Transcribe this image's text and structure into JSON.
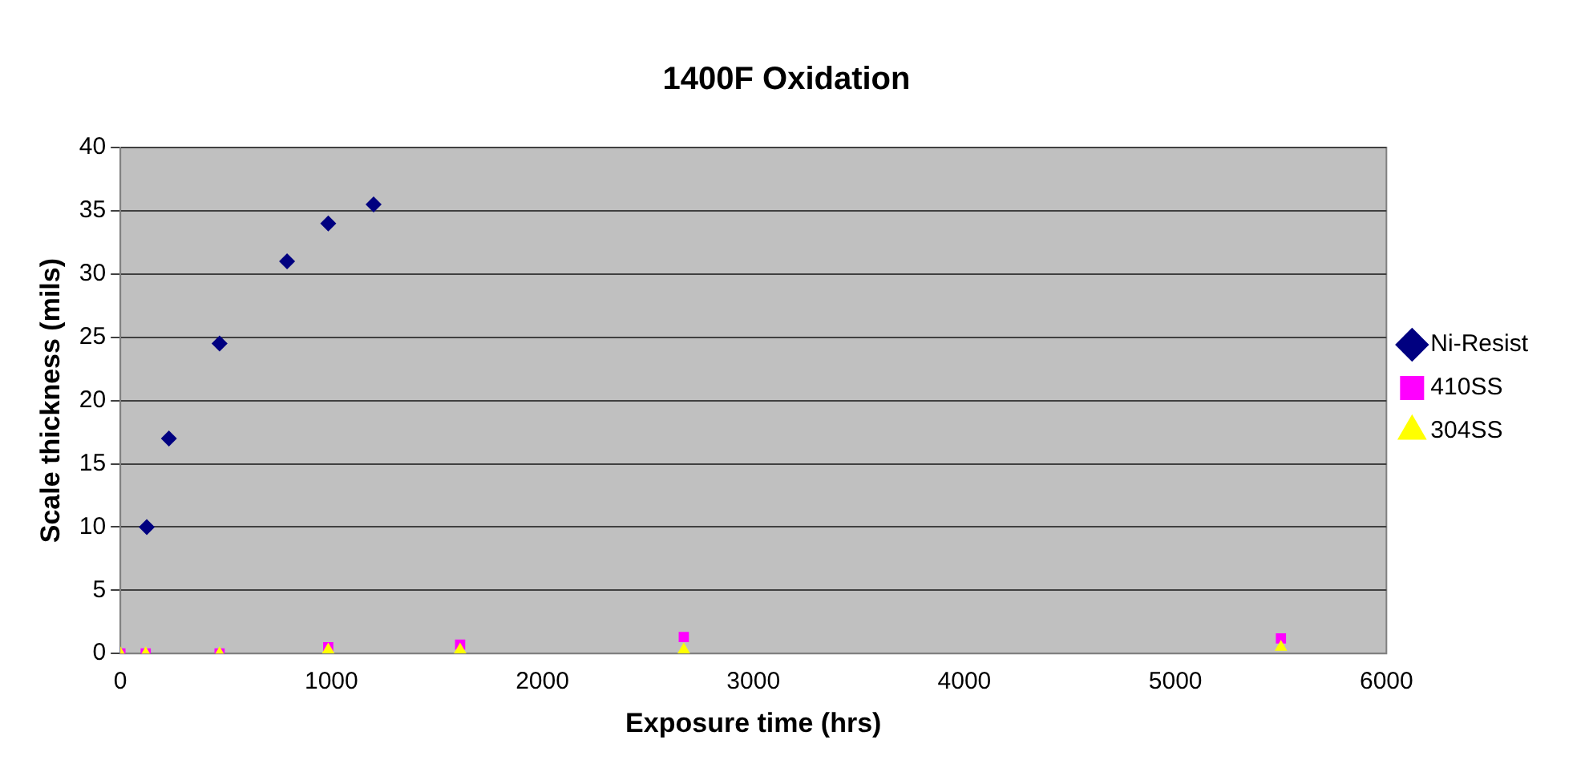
{
  "chart_data": {
    "type": "scatter",
    "title": "1400F Oxidation",
    "xlabel": "Exposure time (hrs)",
    "ylabel": "Scale thickness (mils)",
    "xlim": [
      0,
      6000
    ],
    "xticks": [
      0,
      1000,
      2000,
      3000,
      4000,
      5000,
      6000
    ],
    "ylim": [
      0,
      40
    ],
    "yticks": [
      0,
      5,
      10,
      15,
      20,
      25,
      30,
      35,
      40
    ],
    "grid": "y",
    "legend": "right",
    "series": [
      {
        "name": "Ni-Resist",
        "color": "#000080",
        "marker": "diamond",
        "x": [
          125,
          230,
          470,
          790,
          985,
          1200
        ],
        "values": [
          10,
          17,
          24.5,
          31,
          34,
          35.5
        ]
      },
      {
        "name": "410SS",
        "color": "#ff00ff",
        "marker": "square",
        "x": [
          0,
          120,
          470,
          985,
          1610,
          2670,
          5500
        ],
        "values": [
          0,
          0,
          0,
          0.5,
          0.7,
          1.3,
          1.2
        ]
      },
      {
        "name": "304SS",
        "color": "#ffff00",
        "marker": "triangle",
        "x": [
          0,
          120,
          470,
          985,
          1610,
          2670,
          5500
        ],
        "values": [
          0,
          0,
          0,
          0.3,
          0.3,
          0.3,
          0.5
        ]
      }
    ]
  }
}
